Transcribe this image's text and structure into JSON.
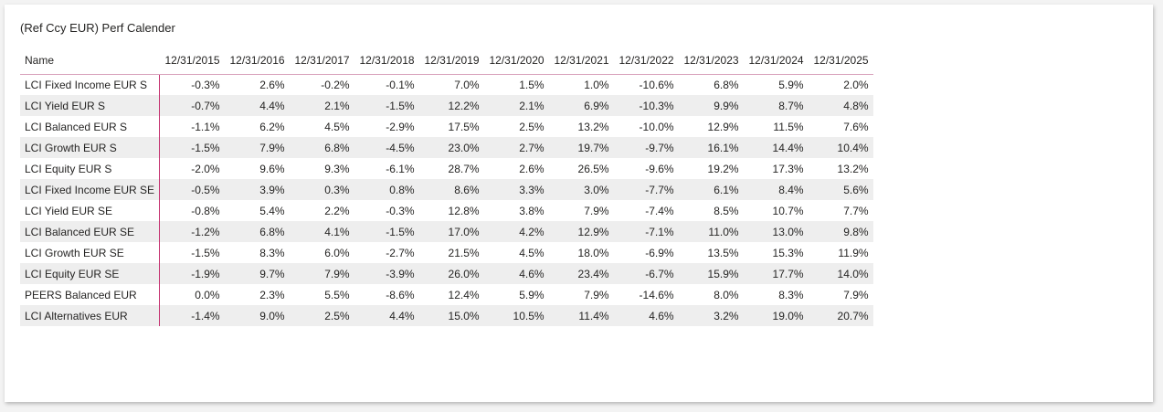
{
  "title": "(Ref Ccy EUR) Perf Calender",
  "table": {
    "columns": [
      "Name",
      "12/31/2015",
      "12/31/2016",
      "12/31/2017",
      "12/31/2018",
      "12/31/2019",
      "12/31/2020",
      "12/31/2021",
      "12/31/2022",
      "12/31/2023",
      "12/31/2024",
      "12/31/2025"
    ],
    "rows": [
      [
        "LCI Fixed Income EUR S",
        "-0.3%",
        "2.6%",
        "-0.2%",
        "-0.1%",
        "7.0%",
        "1.5%",
        "1.0%",
        "-10.6%",
        "6.8%",
        "5.9%",
        "2.0%"
      ],
      [
        "LCI Yield EUR S",
        "-0.7%",
        "4.4%",
        "2.1%",
        "-1.5%",
        "12.2%",
        "2.1%",
        "6.9%",
        "-10.3%",
        "9.9%",
        "8.7%",
        "4.8%"
      ],
      [
        "LCI Balanced EUR S",
        "-1.1%",
        "6.2%",
        "4.5%",
        "-2.9%",
        "17.5%",
        "2.5%",
        "13.2%",
        "-10.0%",
        "12.9%",
        "11.5%",
        "7.6%"
      ],
      [
        "LCI Growth EUR S",
        "-1.5%",
        "7.9%",
        "6.8%",
        "-4.5%",
        "23.0%",
        "2.7%",
        "19.7%",
        "-9.7%",
        "16.1%",
        "14.4%",
        "10.4%"
      ],
      [
        "LCI Equity EUR S",
        "-2.0%",
        "9.6%",
        "9.3%",
        "-6.1%",
        "28.7%",
        "2.6%",
        "26.5%",
        "-9.6%",
        "19.2%",
        "17.3%",
        "13.2%"
      ],
      [
        "LCI Fixed Income EUR SE",
        "-0.5%",
        "3.9%",
        "0.3%",
        "0.8%",
        "8.6%",
        "3.3%",
        "3.0%",
        "-7.7%",
        "6.1%",
        "8.4%",
        "5.6%"
      ],
      [
        "LCI Yield EUR SE",
        "-0.8%",
        "5.4%",
        "2.2%",
        "-0.3%",
        "12.8%",
        "3.8%",
        "7.9%",
        "-7.4%",
        "8.5%",
        "10.7%",
        "7.7%"
      ],
      [
        "LCI Balanced EUR SE",
        "-1.2%",
        "6.8%",
        "4.1%",
        "-1.5%",
        "17.0%",
        "4.2%",
        "12.9%",
        "-7.1%",
        "11.0%",
        "13.0%",
        "9.8%"
      ],
      [
        "LCI Growth EUR SE",
        "-1.5%",
        "8.3%",
        "6.0%",
        "-2.7%",
        "21.5%",
        "4.5%",
        "18.0%",
        "-6.9%",
        "13.5%",
        "15.3%",
        "11.9%"
      ],
      [
        "LCI Equity EUR SE",
        "-1.9%",
        "9.7%",
        "7.9%",
        "-3.9%",
        "26.0%",
        "4.6%",
        "23.4%",
        "-6.7%",
        "15.9%",
        "17.7%",
        "14.0%"
      ],
      [
        "PEERS Balanced EUR",
        "0.0%",
        "2.3%",
        "5.5%",
        "-8.6%",
        "12.4%",
        "5.9%",
        "7.9%",
        "-14.6%",
        "8.0%",
        "8.3%",
        "7.9%"
      ],
      [
        "LCI Alternatives EUR",
        "-1.4%",
        "9.0%",
        "2.5%",
        "4.4%",
        "15.0%",
        "10.5%",
        "11.4%",
        "4.6%",
        "3.2%",
        "19.0%",
        "20.7%"
      ]
    ]
  }
}
